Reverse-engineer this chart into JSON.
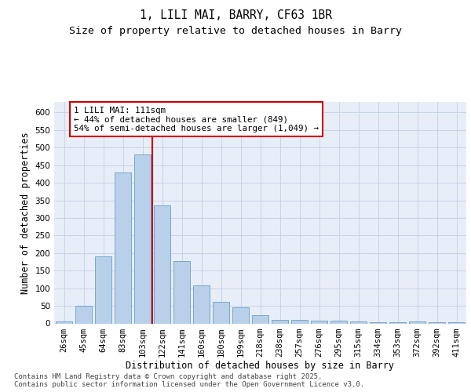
{
  "title_line1": "1, LILI MAI, BARRY, CF63 1BR",
  "title_line2": "Size of property relative to detached houses in Barry",
  "xlabel": "Distribution of detached houses by size in Barry",
  "ylabel": "Number of detached properties",
  "bar_labels": [
    "26sqm",
    "45sqm",
    "64sqm",
    "83sqm",
    "103sqm",
    "122sqm",
    "141sqm",
    "160sqm",
    "180sqm",
    "199sqm",
    "218sqm",
    "238sqm",
    "257sqm",
    "276sqm",
    "295sqm",
    "315sqm",
    "334sqm",
    "353sqm",
    "372sqm",
    "392sqm",
    "411sqm"
  ],
  "bar_values": [
    5,
    50,
    190,
    430,
    480,
    335,
    178,
    108,
    62,
    45,
    23,
    11,
    11,
    8,
    8,
    5,
    4,
    4,
    6,
    4,
    3
  ],
  "bar_color": "#b8d0ea",
  "bar_edge_color": "#6a9ec8",
  "grid_color": "#c8d4e8",
  "background_color": "#e8eef8",
  "vline_x_index": 4,
  "vline_color": "#cc0000",
  "annotation_text": "1 LILI MAI: 111sqm\n← 44% of detached houses are smaller (849)\n54% of semi-detached houses are larger (1,049) →",
  "annotation_box_color": "#cc0000",
  "ylim": [
    0,
    630
  ],
  "yticks": [
    0,
    50,
    100,
    150,
    200,
    250,
    300,
    350,
    400,
    450,
    500,
    550,
    600
  ],
  "footer_text": "Contains HM Land Registry data © Crown copyright and database right 2025.\nContains public sector information licensed under the Open Government Licence v3.0.",
  "title_fontsize": 10.5,
  "subtitle_fontsize": 9.5,
  "axis_label_fontsize": 8.5,
  "tick_fontsize": 7.5,
  "annotation_fontsize": 7.8,
  "footer_fontsize": 6.5
}
